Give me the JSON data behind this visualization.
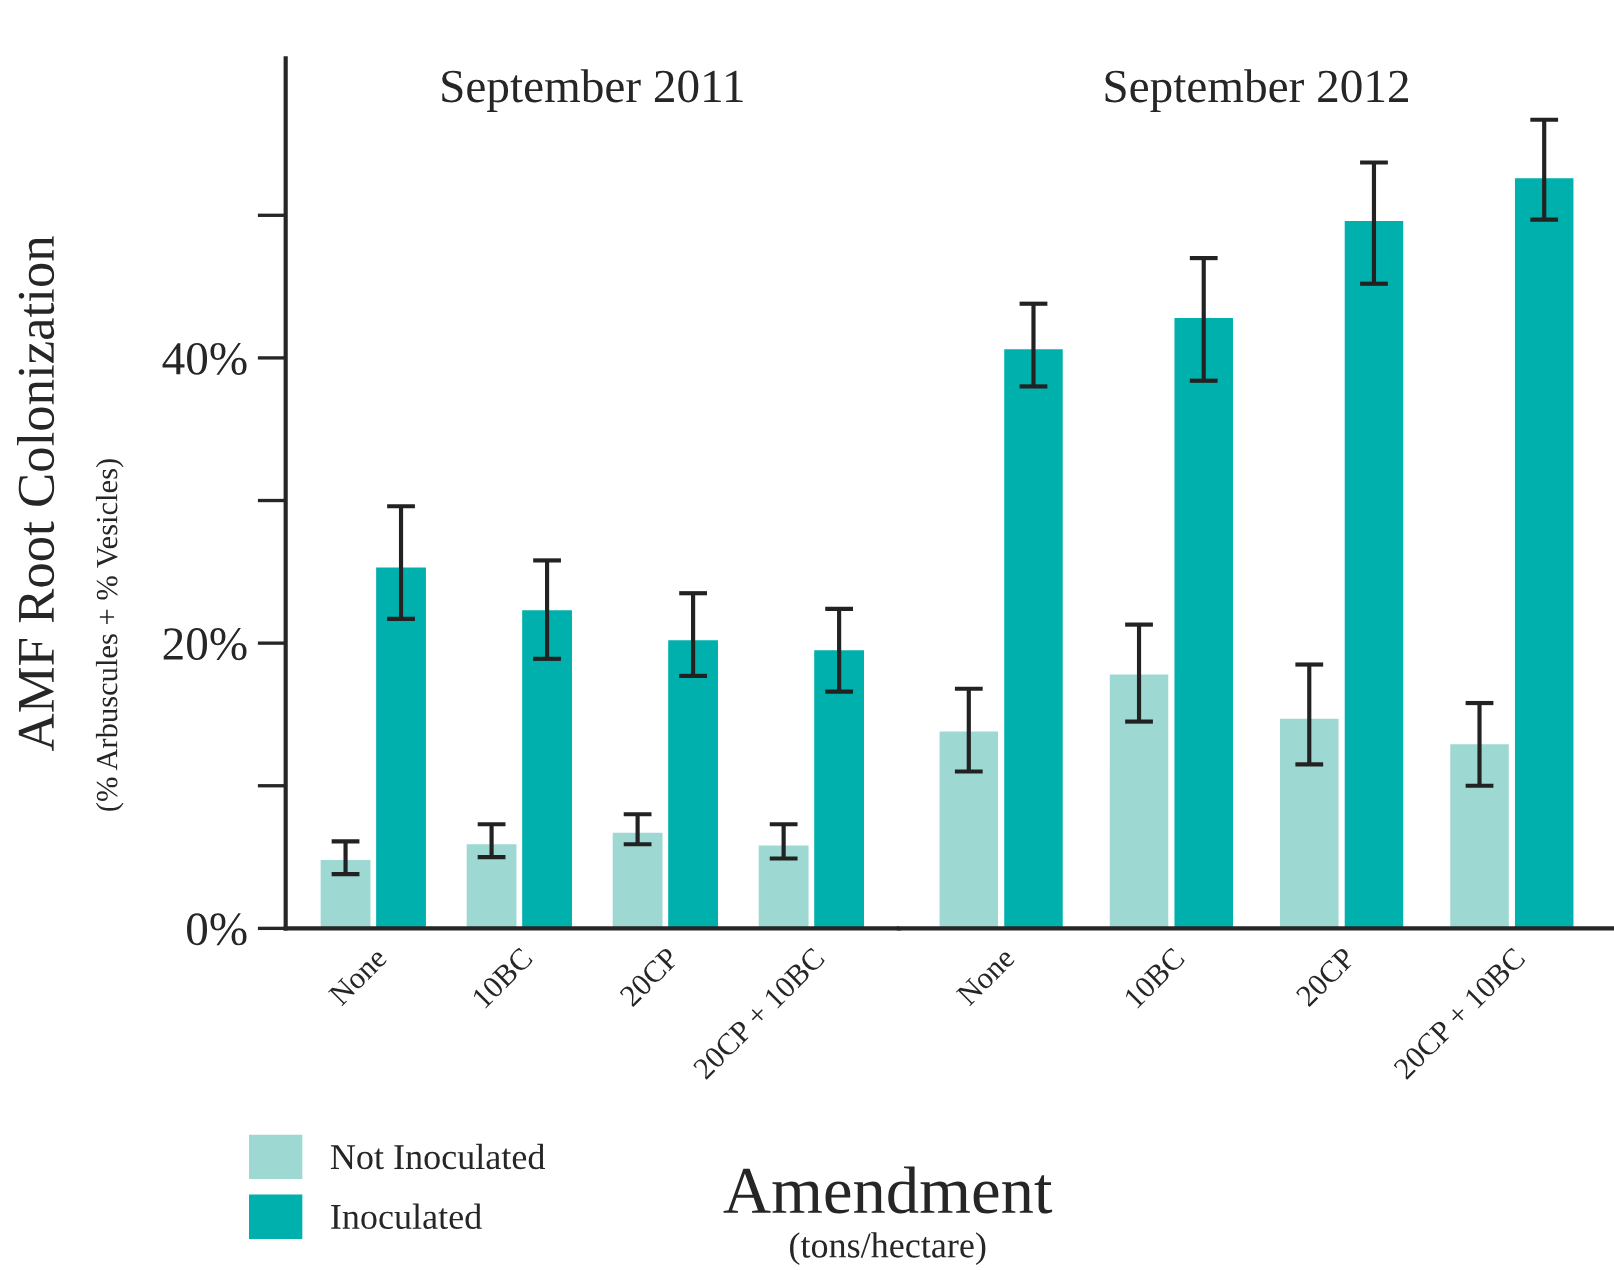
{
  "chart_data": [
    {
      "type": "bar",
      "title": "September 2011",
      "ylabel": "AMF Root Colonization",
      "xlabel": "Amendment",
      "annotations": [
        "(% Arbuscules + % Vesicles)",
        "(tons/hectare)"
      ],
      "categories": [
        "None",
        "10BC",
        "20CP",
        "20CP + 10BC"
      ],
      "series": [
        {
          "name": "Not Inoculated",
          "color": "#9ed8d3",
          "values": [
            4.9,
            6.0,
            6.8,
            5.9
          ],
          "errors": [
            [
              3.8,
              6.1
            ],
            [
              5.0,
              7.3
            ],
            [
              5.9,
              8.0
            ],
            [
              4.9,
              7.3
            ]
          ]
        },
        {
          "name": "Inoculated",
          "color": "#00b0ac",
          "values": [
            25.4,
            22.4,
            20.3,
            19.6
          ],
          "errors": [
            [
              21.7,
              29.6
            ],
            [
              18.9,
              25.8
            ],
            [
              17.7,
              23.5
            ],
            [
              16.6,
              22.4
            ]
          ]
        }
      ],
      "ylim": [
        0,
        61
      ],
      "yticks": [
        {
          "value": 0,
          "label": "0%"
        },
        {
          "value": 10,
          "label": null
        },
        {
          "value": 20,
          "label": "20%"
        },
        {
          "value": 30,
          "label": null
        },
        {
          "value": 40,
          "label": "40%"
        },
        {
          "value": 50,
          "label": null
        }
      ],
      "legend": "bottom left",
      "grid": false
    },
    {
      "type": "bar",
      "title": "September 2012",
      "categories": [
        "None",
        "10BC",
        "20CP",
        "20CP + 10BC"
      ],
      "series": [
        {
          "color": "#9ed8d3",
          "values": [
            13.9,
            17.9,
            14.8,
            13.0
          ],
          "errors": [
            [
              11.0,
              16.8
            ],
            [
              14.5,
              21.3
            ],
            [
              11.5,
              18.5
            ],
            [
              10.0,
              15.8
            ]
          ]
        },
        {
          "color": "#00b0ac",
          "values": [
            40.7,
            42.9,
            49.7,
            52.7
          ],
          "errors": [
            [
              38.0,
              43.8
            ],
            [
              38.4,
              47.0
            ],
            [
              45.2,
              53.7
            ],
            [
              49.7,
              56.7
            ]
          ]
        }
      ],
      "ylim": [
        0,
        61
      ],
      "tick_labels": "x",
      "grid": false
    }
  ]
}
